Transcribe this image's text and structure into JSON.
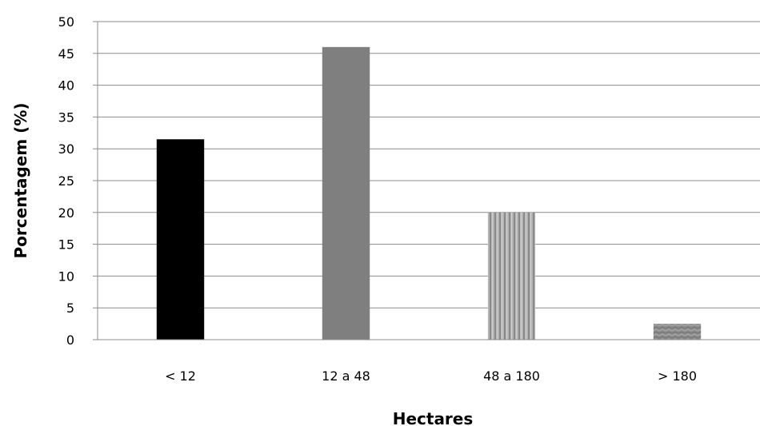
{
  "chart_data": {
    "type": "bar",
    "xlabel": "Hectares",
    "ylabel": "Porcentagem (%)",
    "categories": [
      "< 12",
      "12 a 48",
      "48 a 180",
      "> 180"
    ],
    "values": [
      31.5,
      46,
      20,
      2.5
    ],
    "ylim": [
      0,
      50
    ],
    "yticks": [
      0,
      5,
      10,
      15,
      20,
      25,
      30,
      35,
      40,
      45,
      50
    ],
    "grid": true,
    "legend": "none",
    "bar_styles": [
      "solid-black",
      "solid-gray",
      "vertical-stripes",
      "diagonal-texture"
    ],
    "colors": {
      "black_bar": "#000000",
      "gray_bar": "#7f7f7f",
      "striped_bar_base": "#a6a6a6",
      "textured_bar_base": "#8c8c8c",
      "gridline": "#8c8c8c"
    }
  }
}
